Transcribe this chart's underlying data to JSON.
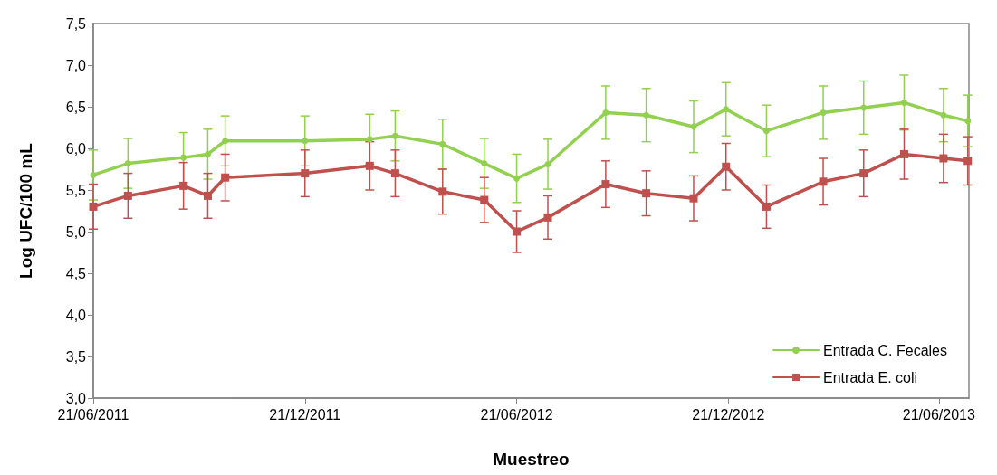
{
  "chart_data": {
    "type": "line",
    "xlabel": "Muestreo",
    "ylabel": "Log UFC/100 mL",
    "x": [
      "2011-06-21",
      "2011-07-21",
      "2011-09-07",
      "2011-09-28",
      "2011-10-13",
      "2011-12-21",
      "2012-02-15",
      "2012-03-08",
      "2012-04-18",
      "2012-05-24",
      "2012-06-21",
      "2012-07-18",
      "2012-09-06",
      "2012-10-11",
      "2012-11-21",
      "2012-12-19",
      "2013-01-23",
      "2013-03-13",
      "2013-04-17",
      "2013-05-22",
      "2013-06-25",
      "2013-07-16"
    ],
    "series": [
      {
        "name": "Entrada C. Fecales",
        "color": "#92d050",
        "marker": "circle",
        "values": [
          5.68,
          5.82,
          5.89,
          5.93,
          6.09,
          6.09,
          6.11,
          6.15,
          6.05,
          5.82,
          5.64,
          5.81,
          6.43,
          6.4,
          6.26,
          6.47,
          6.21,
          6.43,
          6.49,
          6.55,
          6.4,
          6.33
        ],
        "errors": [
          0.3,
          0.3,
          0.3,
          0.3,
          0.3,
          0.3,
          0.3,
          0.3,
          0.3,
          0.3,
          0.29,
          0.3,
          0.32,
          0.32,
          0.31,
          0.32,
          0.31,
          0.32,
          0.32,
          0.33,
          0.32,
          0.31
        ]
      },
      {
        "name": "Entrada E. coli",
        "color": "#c0504d",
        "marker": "square",
        "values": [
          5.3,
          5.43,
          5.55,
          5.43,
          5.65,
          5.7,
          5.79,
          5.7,
          5.48,
          5.38,
          5.0,
          5.17,
          5.57,
          5.46,
          5.4,
          5.78,
          5.3,
          5.6,
          5.7,
          5.93,
          5.88,
          5.85
        ],
        "errors": [
          0.27,
          0.27,
          0.28,
          0.27,
          0.28,
          0.28,
          0.29,
          0.28,
          0.27,
          0.27,
          0.25,
          0.26,
          0.28,
          0.27,
          0.27,
          0.28,
          0.26,
          0.28,
          0.28,
          0.3,
          0.29,
          0.29
        ]
      }
    ],
    "xlim": [
      "2011-06-21",
      "2013-07-17"
    ],
    "xticks": [
      {
        "value": "2011-06-21",
        "label": "21/06/2011"
      },
      {
        "value": "2011-12-21",
        "label": "21/12/2011"
      },
      {
        "value": "2012-06-21",
        "label": "21/06/2012"
      },
      {
        "value": "2012-12-21",
        "label": "21/12/2012"
      },
      {
        "value": "2013-06-21",
        "label": "21/06/2013"
      }
    ],
    "ylim": [
      3.0,
      7.5
    ],
    "yticks": [
      {
        "value": 3.0,
        "label": "3,0"
      },
      {
        "value": 3.5,
        "label": "3,5"
      },
      {
        "value": 4.0,
        "label": "4,0"
      },
      {
        "value": 4.5,
        "label": "4,5"
      },
      {
        "value": 5.0,
        "label": "5,0"
      },
      {
        "value": 5.5,
        "label": "5,5"
      },
      {
        "value": 6.0,
        "label": "6,0"
      },
      {
        "value": 6.5,
        "label": "6,5"
      },
      {
        "value": 7.0,
        "label": "7,0"
      },
      {
        "value": 7.5,
        "label": "7,5"
      }
    ],
    "grid": false,
    "legend": "bottom right",
    "line_style": "solid"
  }
}
